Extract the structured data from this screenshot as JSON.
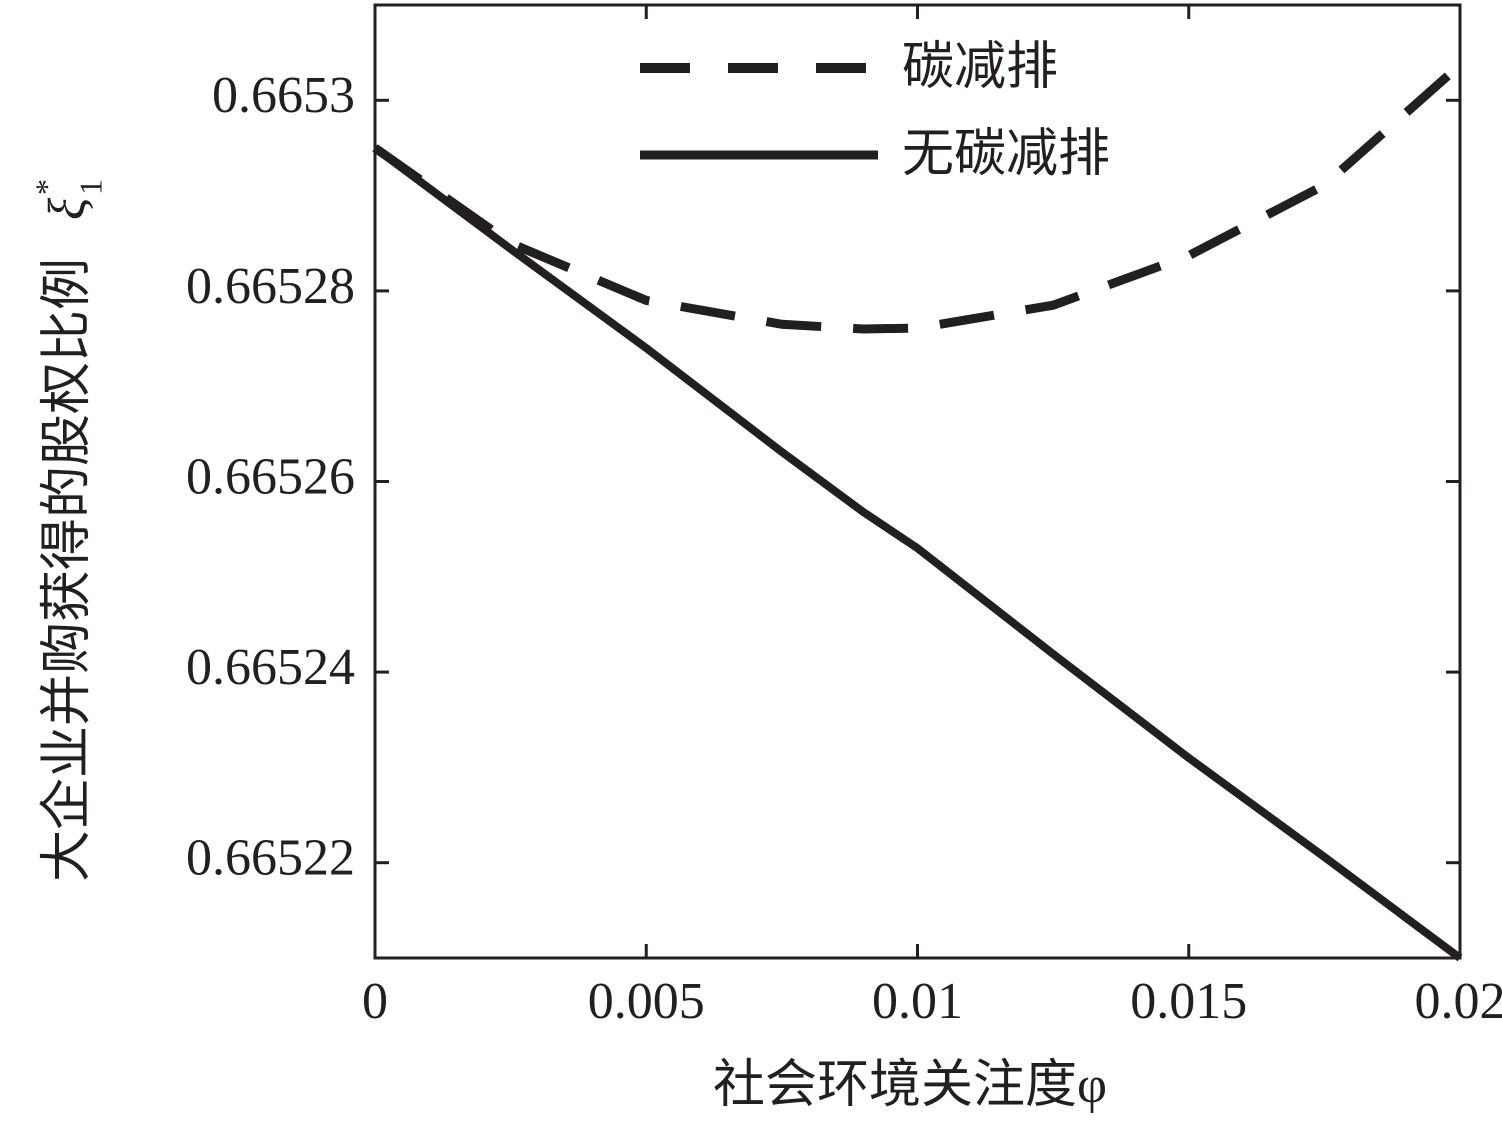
{
  "chart_data": {
    "type": "line",
    "xlabel": "社会环境关注度φ",
    "ylabel": "大企业并购获得的股权比例",
    "ylabel_symbol": "ξ",
    "ylabel_superscript": "*",
    "ylabel_subscript": "1",
    "x": [
      0,
      0.0025,
      0.005,
      0.0075,
      0.009,
      0.01,
      0.0125,
      0.015,
      0.0175,
      0.02
    ],
    "series": [
      {
        "name": "碳减排",
        "color": "#231f20",
        "dash": true,
        "values": [
          0.665295,
          0.665285,
          0.665279,
          0.6652765,
          0.665276,
          0.6652761,
          0.6652785,
          0.6652837,
          0.6652911,
          0.6653037
        ]
      },
      {
        "name": "无碳减排",
        "color": "#231f20",
        "dash": false,
        "values": [
          0.665295,
          0.6652844,
          0.665274,
          0.6652631,
          0.6652568,
          0.665253,
          0.6652419,
          0.665231,
          0.6652206,
          0.66521
        ]
      }
    ],
    "xlim": [
      0,
      0.02
    ],
    "xticks": [
      0,
      0.005,
      0.01,
      0.015,
      0.02
    ],
    "ylim": [
      0.66521,
      0.66531
    ],
    "yticks": [
      0.66522,
      0.66524,
      0.66526,
      0.66528,
      0.6653
    ],
    "legend": "upper center",
    "grid": false
  }
}
